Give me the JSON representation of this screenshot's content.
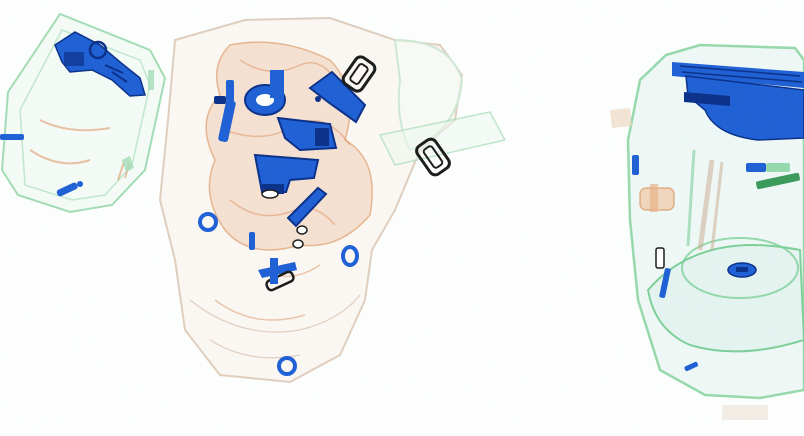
{
  "scene": {
    "kind": "x-ray baggage scan",
    "palette": {
      "background": "#ffffff",
      "organic": "#d9884f",
      "mixed": "#5fbf8a",
      "inorganic": "#1f5fd6",
      "inorganic_dark": "#0b2f8a",
      "outline_dark": "#1a1a1a"
    },
    "items": [
      {
        "name": "left-small-case",
        "material": "mixed"
      },
      {
        "name": "center-bag",
        "material": "organic"
      },
      {
        "name": "right-backpack",
        "material": "mixed"
      }
    ]
  }
}
